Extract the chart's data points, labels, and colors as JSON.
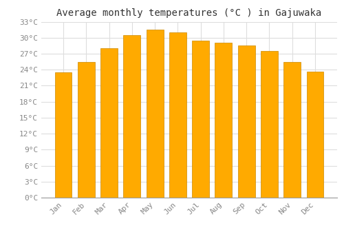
{
  "months": [
    "Jan",
    "Feb",
    "Mar",
    "Apr",
    "May",
    "Jun",
    "Jul",
    "Aug",
    "Sep",
    "Oct",
    "Nov",
    "Dec"
  ],
  "temperatures": [
    23.5,
    25.5,
    28.0,
    30.5,
    31.5,
    31.0,
    29.5,
    29.0,
    28.5,
    27.5,
    25.5,
    23.7
  ],
  "bar_color": "#FFAA00",
  "bar_edge_color": "#CC8800",
  "background_color": "#FFFFFF",
  "plot_bg_color": "#FFFFFF",
  "grid_color": "#DDDDDD",
  "title": "Average monthly temperatures (°C ) in Gajuwaka",
  "title_fontsize": 10,
  "title_color": "#333333",
  "tick_label_color": "#888888",
  "ytick_step": 3,
  "ymin": 0,
  "ymax": 33,
  "font_family": "monospace",
  "bar_width": 0.75
}
